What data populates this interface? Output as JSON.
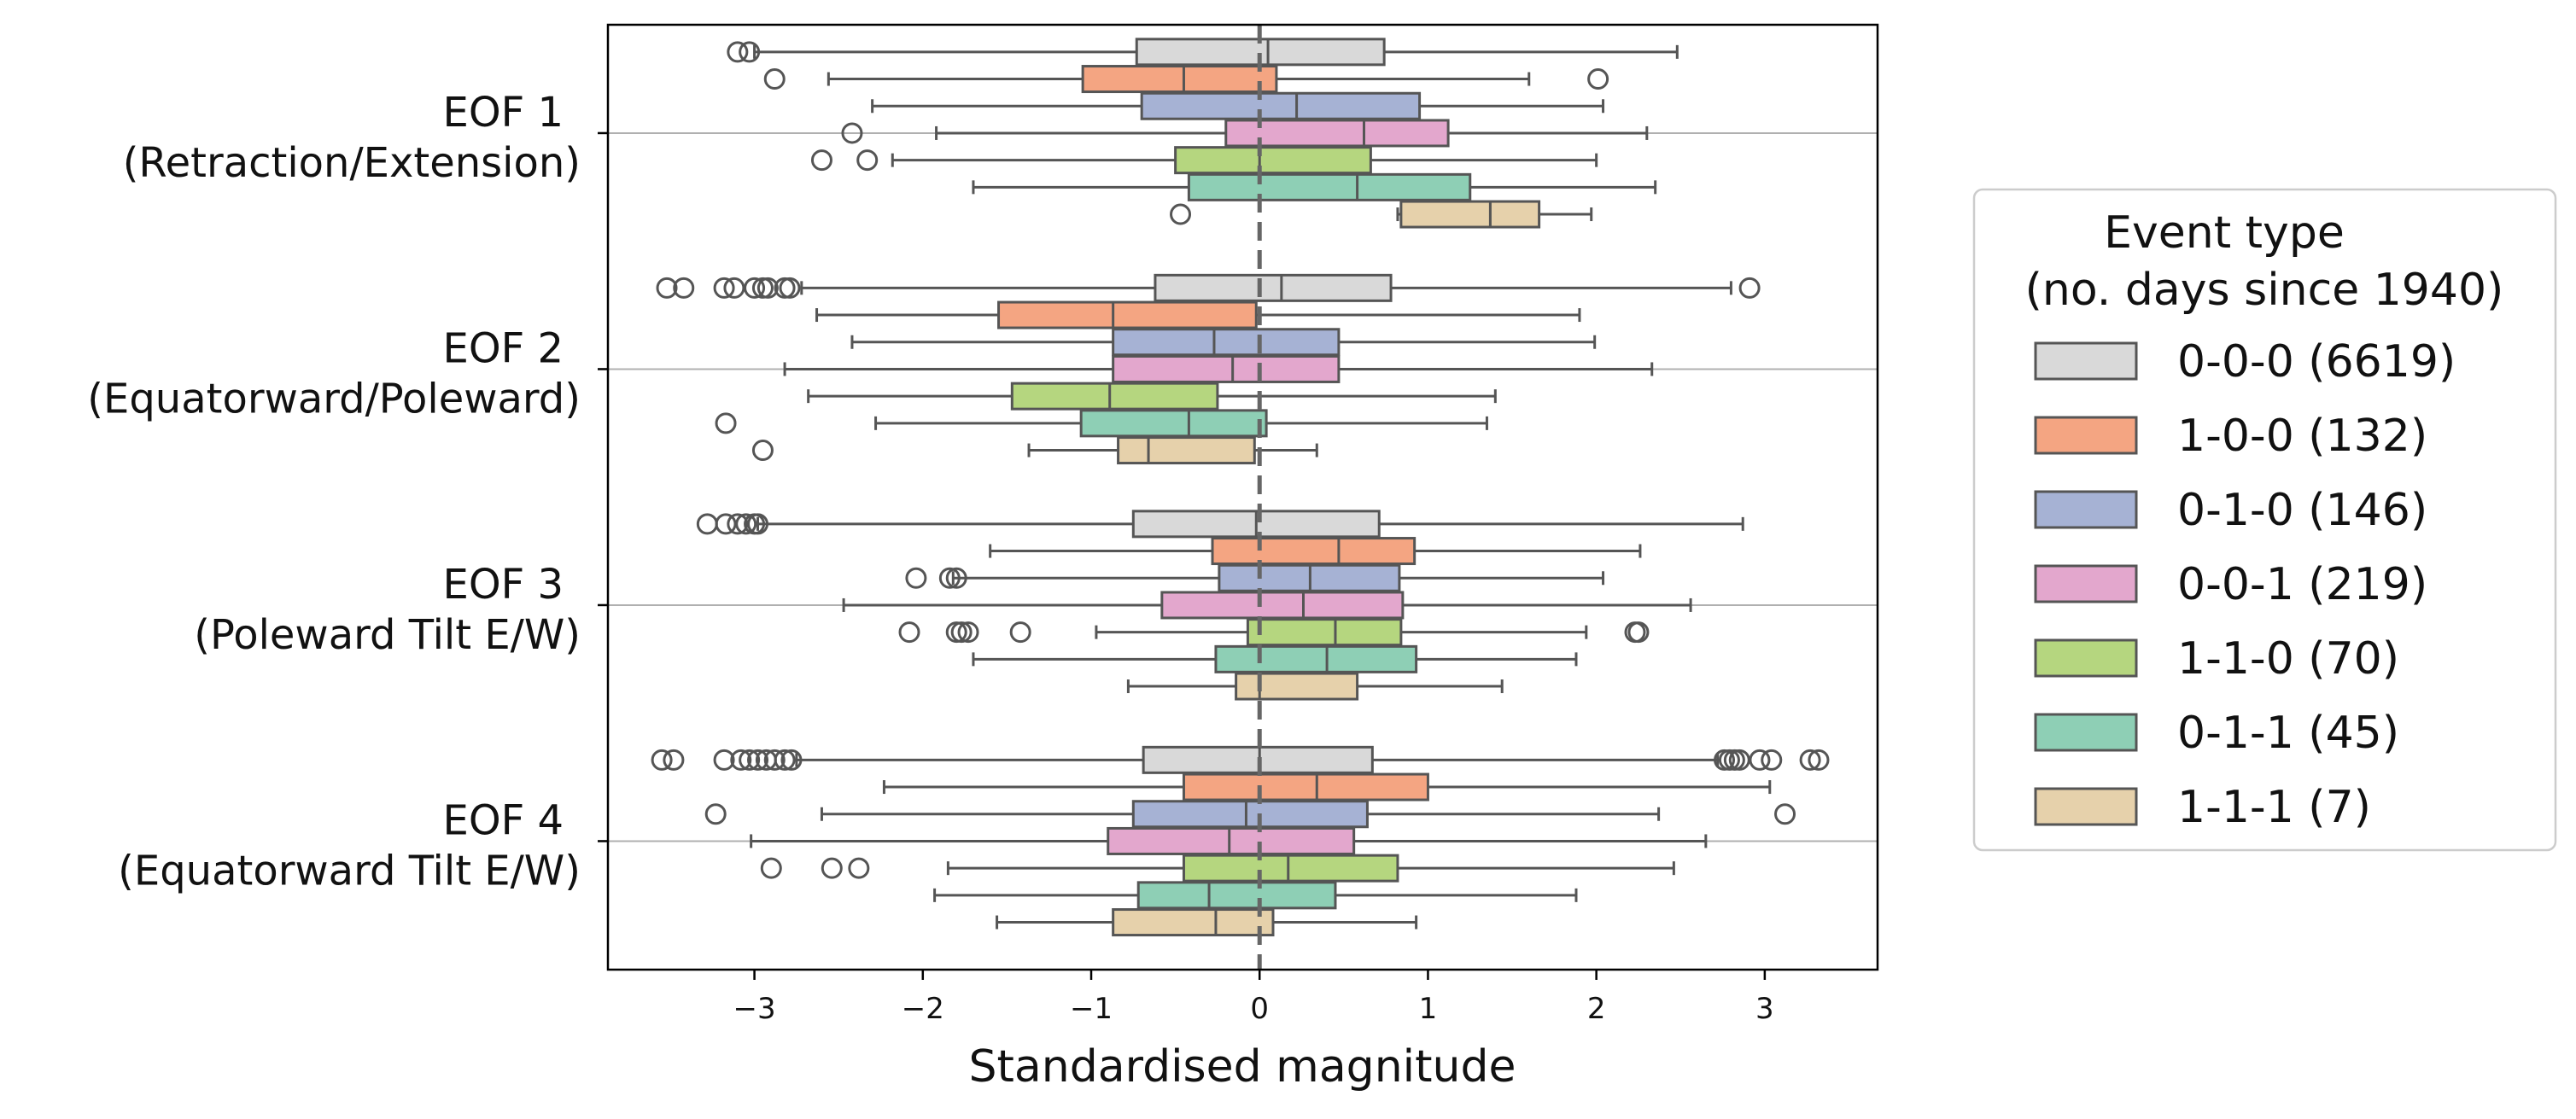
{
  "chart_data": {
    "type": "boxplot",
    "orientation": "horizontal",
    "xlabel": "Standardised magnitude",
    "xlim": [
      -3.87,
      3.67
    ],
    "xticks": [
      -3,
      -2,
      -1,
      0,
      1,
      2,
      3
    ],
    "xtick_labels": [
      "−3",
      "−2",
      "−1",
      "0",
      "1",
      "2",
      "3"
    ],
    "reference_line_x": 0,
    "grid": "horizontal lines at category centres",
    "categories": [
      {
        "label": "EOF 1",
        "sublabel": "(Retraction/Extension)"
      },
      {
        "label": "EOF 2",
        "sublabel": "(Equatorward/Poleward)"
      },
      {
        "label": "EOF 3",
        "sublabel": "(Poleward Tilt E/W)"
      },
      {
        "label": "EOF 4",
        "sublabel": "(Equatorward Tilt E/W)"
      }
    ],
    "legend": {
      "title_line1": "Event type",
      "title_line2": "(no. days since 1940)",
      "placement": "right"
    },
    "series": [
      {
        "name": "0-0-0 (6619)",
        "color": "#d9d9d9",
        "boxes": [
          {
            "wlo": -3.0,
            "q1": -0.73,
            "med": 0.05,
            "q3": 0.74,
            "whi": 2.48,
            "outliers": [
              -3.1,
              -3.03
            ]
          },
          {
            "wlo": -2.72,
            "q1": -0.62,
            "med": 0.13,
            "q3": 0.78,
            "whi": 2.8,
            "outliers": [
              -3.52,
              -3.42,
              -3.18,
              -3.12,
              -3.0,
              -2.95,
              -2.92,
              -2.82,
              -2.79,
              2.91
            ]
          },
          {
            "wlo": -2.98,
            "q1": -0.75,
            "med": -0.02,
            "q3": 0.71,
            "whi": 2.87,
            "outliers": [
              -3.28,
              -3.17,
              -3.1,
              -3.05,
              -3.0,
              -2.98
            ]
          },
          {
            "wlo": -2.75,
            "q1": -0.69,
            "med": 0.0,
            "q3": 0.67,
            "whi": 2.72,
            "outliers": [
              -3.55,
              -3.48,
              -3.18,
              -3.08,
              -3.03,
              -2.98,
              -2.93,
              -2.88,
              -2.82,
              -2.78,
              2.76,
              2.79,
              2.82,
              2.85,
              2.97,
              3.04,
              3.27,
              3.32
            ]
          }
        ]
      },
      {
        "name": "1-0-0 (132)",
        "color": "#f4a582",
        "boxes": [
          {
            "wlo": -2.56,
            "q1": -1.05,
            "med": -0.45,
            "q3": 0.1,
            "whi": 1.6,
            "outliers": [
              -2.88,
              2.01
            ]
          },
          {
            "wlo": -2.63,
            "q1": -1.55,
            "med": -0.87,
            "q3": -0.02,
            "whi": 1.9,
            "outliers": []
          },
          {
            "wlo": -1.6,
            "q1": -0.28,
            "med": 0.47,
            "q3": 0.92,
            "whi": 2.26,
            "outliers": []
          },
          {
            "wlo": -2.23,
            "q1": -0.45,
            "med": 0.34,
            "q3": 1.0,
            "whi": 3.03,
            "outliers": []
          }
        ]
      },
      {
        "name": "0-1-0 (146)",
        "color": "#a6b2d4",
        "boxes": [
          {
            "wlo": -2.3,
            "q1": -0.7,
            "med": 0.22,
            "q3": 0.95,
            "whi": 2.04,
            "outliers": []
          },
          {
            "wlo": -2.42,
            "q1": -0.87,
            "med": -0.27,
            "q3": 0.47,
            "whi": 1.99,
            "outliers": []
          },
          {
            "wlo": -1.82,
            "q1": -0.24,
            "med": 0.3,
            "q3": 0.83,
            "whi": 2.04,
            "outliers": [
              -2.04,
              -1.84,
              -1.8
            ]
          },
          {
            "wlo": -2.6,
            "q1": -0.75,
            "med": -0.08,
            "q3": 0.64,
            "whi": 2.37,
            "outliers": [
              -3.23,
              3.12
            ]
          }
        ]
      },
      {
        "name": "0-0-1 (219)",
        "color": "#e3a7cd",
        "boxes": [
          {
            "wlo": -1.92,
            "q1": -0.2,
            "med": 0.62,
            "q3": 1.12,
            "whi": 2.3,
            "outliers": [
              -2.42
            ]
          },
          {
            "wlo": -2.82,
            "q1": -0.87,
            "med": -0.16,
            "q3": 0.47,
            "whi": 2.33,
            "outliers": []
          },
          {
            "wlo": -2.47,
            "q1": -0.58,
            "med": 0.26,
            "q3": 0.85,
            "whi": 2.56,
            "outliers": []
          },
          {
            "wlo": -3.02,
            "q1": -0.9,
            "med": -0.18,
            "q3": 0.56,
            "whi": 2.65,
            "outliers": []
          }
        ]
      },
      {
        "name": "1-1-0 (70)",
        "color": "#b5d67f",
        "boxes": [
          {
            "wlo": -2.18,
            "q1": -0.5,
            "med": 0.0,
            "q3": 0.66,
            "whi": 2.0,
            "outliers": [
              -2.6,
              -2.33
            ]
          },
          {
            "wlo": -2.68,
            "q1": -1.47,
            "med": -0.89,
            "q3": -0.25,
            "whi": 1.4,
            "outliers": []
          },
          {
            "wlo": -0.97,
            "q1": -0.07,
            "med": 0.45,
            "q3": 0.84,
            "whi": 1.94,
            "outliers": [
              -2.08,
              -1.8,
              -1.77,
              -1.73,
              -1.42,
              2.23,
              2.25
            ]
          },
          {
            "wlo": -1.85,
            "q1": -0.45,
            "med": 0.17,
            "q3": 0.82,
            "whi": 2.46,
            "outliers": [
              -2.9,
              -2.54,
              -2.38
            ]
          }
        ]
      },
      {
        "name": "0-1-1 (45)",
        "color": "#8ecfb5",
        "boxes": [
          {
            "wlo": -1.7,
            "q1": -0.42,
            "med": 0.58,
            "q3": 1.25,
            "whi": 2.35,
            "outliers": []
          },
          {
            "wlo": -2.28,
            "q1": -1.06,
            "med": -0.42,
            "q3": 0.04,
            "whi": 1.35,
            "outliers": [
              -3.17
            ]
          },
          {
            "wlo": -1.7,
            "q1": -0.26,
            "med": 0.4,
            "q3": 0.93,
            "whi": 1.88,
            "outliers": []
          },
          {
            "wlo": -1.93,
            "q1": -0.72,
            "med": -0.3,
            "q3": 0.45,
            "whi": 1.88,
            "outliers": []
          }
        ]
      },
      {
        "name": "1-1-1 (7)",
        "color": "#e6d1ab",
        "boxes": [
          {
            "wlo": 0.82,
            "q1": 0.84,
            "med": 1.37,
            "q3": 1.66,
            "whi": 1.97,
            "outliers": [
              -0.47
            ]
          },
          {
            "wlo": -1.37,
            "q1": -0.84,
            "med": -0.66,
            "q3": -0.03,
            "whi": 0.34,
            "outliers": [
              -2.95
            ]
          },
          {
            "wlo": -0.78,
            "q1": -0.14,
            "med": 0.0,
            "q3": 0.58,
            "whi": 1.44,
            "outliers": []
          },
          {
            "wlo": -1.56,
            "q1": -0.87,
            "med": -0.26,
            "q3": 0.08,
            "whi": 0.93,
            "outliers": []
          }
        ]
      }
    ]
  }
}
